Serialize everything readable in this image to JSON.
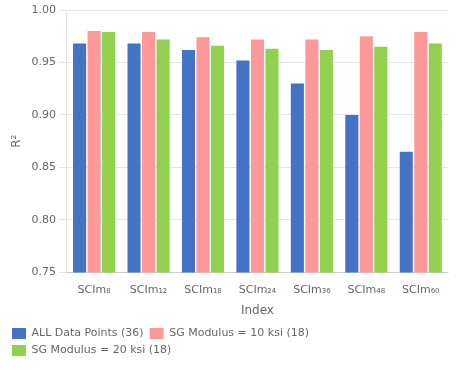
{
  "chart_data": {
    "type": "bar",
    "categories": [
      "SCIm₈",
      "SCIm₁₂",
      "SCIm₁₈",
      "SCIm₂₄",
      "SCIm₃₆",
      "SCIm₄₈",
      "SCIm₆₀"
    ],
    "series": [
      {
        "name": "ALL Data Points (36)",
        "color": "#4472C4",
        "values": [
          0.968,
          0.968,
          0.962,
          0.952,
          0.93,
          0.9,
          0.865
        ]
      },
      {
        "name": "SG Modulus = 10 ksi (18)",
        "color": "#FF9999",
        "values": [
          0.98,
          0.979,
          0.974,
          0.972,
          0.972,
          0.975,
          0.979
        ]
      },
      {
        "name": "SG Modulus = 20 ksi (18)",
        "color": "#92D050",
        "values": [
          0.979,
          0.972,
          0.966,
          0.963,
          0.962,
          0.965,
          0.968
        ]
      }
    ],
    "x_label": "Index",
    "y_label": "R²",
    "ylim": [
      0.75,
      1.0
    ],
    "yticks": [
      0.75,
      {
        "value": 0.8,
        "label": "0.80"
      },
      0.85,
      {
        "value": 0.9,
        "label": "0.90"
      },
      0.95,
      {
        "value": 1.0,
        "label": "1.00"
      }
    ],
    "grid": true,
    "legend": "bottom"
  }
}
